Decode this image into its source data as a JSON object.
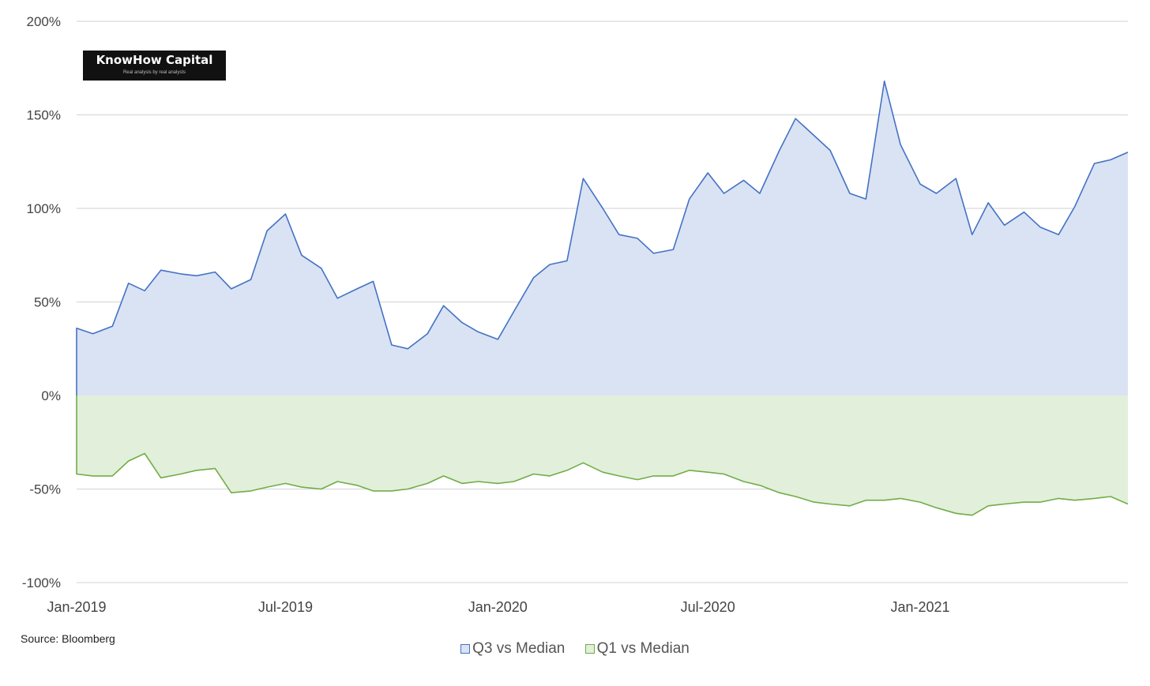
{
  "chart_data": {
    "type": "area",
    "title": "",
    "xlabel": "",
    "ylabel": "",
    "ylim": [
      -100,
      200
    ],
    "yticks": [
      "200%",
      "150%",
      "100%",
      "50%",
      "0%",
      "-50%",
      "-100%"
    ],
    "ytick_values": [
      200,
      150,
      100,
      50,
      0,
      -50,
      -100
    ],
    "xticks": [
      "Jan-2019",
      "Jul-2019",
      "Jan-2020",
      "Jul-2020",
      "Jan-2021"
    ],
    "xtick_dates": [
      "2019-01-01",
      "2019-07-01",
      "2020-01-01",
      "2020-07-01",
      "2021-01-01"
    ],
    "xlim": [
      "2019-01-01",
      "2021-06-30"
    ],
    "grid": "horizontal",
    "legend_position": "bottom",
    "x": [
      "2019-01-01",
      "2019-01-15",
      "2019-02-01",
      "2019-02-15",
      "2019-03-01",
      "2019-03-15",
      "2019-04-01",
      "2019-04-15",
      "2019-05-01",
      "2019-05-15",
      "2019-06-01",
      "2019-06-15",
      "2019-07-01",
      "2019-07-15",
      "2019-08-01",
      "2019-08-15",
      "2019-09-01",
      "2019-09-15",
      "2019-10-01",
      "2019-10-15",
      "2019-11-01",
      "2019-11-15",
      "2019-12-01",
      "2019-12-15",
      "2020-01-01",
      "2020-01-15",
      "2020-02-01",
      "2020-02-15",
      "2020-03-01",
      "2020-03-15",
      "2020-04-01",
      "2020-04-15",
      "2020-05-01",
      "2020-05-15",
      "2020-06-01",
      "2020-06-15",
      "2020-07-01",
      "2020-07-15",
      "2020-08-01",
      "2020-08-15",
      "2020-09-01",
      "2020-09-15",
      "2020-10-01",
      "2020-10-15",
      "2020-11-01",
      "2020-11-15",
      "2020-12-01",
      "2020-12-15",
      "2021-01-01",
      "2021-01-15",
      "2021-02-01",
      "2021-02-15",
      "2021-03-01",
      "2021-03-15",
      "2021-04-01",
      "2021-04-15",
      "2021-05-01",
      "2021-05-15",
      "2021-06-01",
      "2021-06-15",
      "2021-06-30"
    ],
    "series": [
      {
        "name": "Q3 vs Median",
        "color": "#4472c4",
        "fill": "#dae3f3",
        "values": [
          36,
          33,
          37,
          60,
          56,
          67,
          65,
          64,
          66,
          57,
          62,
          88,
          97,
          75,
          68,
          52,
          57,
          61,
          27,
          25,
          33,
          48,
          39,
          34,
          30,
          45,
          63,
          70,
          72,
          116,
          100,
          86,
          84,
          76,
          78,
          105,
          119,
          108,
          115,
          108,
          131,
          148,
          139,
          131,
          108,
          105,
          168,
          134,
          113,
          108,
          116,
          86,
          103,
          91,
          98,
          90,
          86,
          101,
          124,
          126,
          130
        ]
      },
      {
        "name": "Q1 vs Median",
        "color": "#70ad47",
        "fill": "#e2efda",
        "values": [
          -42,
          -43,
          -43,
          -35,
          -31,
          -44,
          -42,
          -40,
          -39,
          -52,
          -51,
          -49,
          -47,
          -49,
          -50,
          -46,
          -48,
          -51,
          -51,
          -50,
          -47,
          -43,
          -47,
          -46,
          -47,
          -46,
          -42,
          -43,
          -40,
          -36,
          -41,
          -43,
          -45,
          -43,
          -43,
          -40,
          -41,
          -42,
          -46,
          -48,
          -52,
          -54,
          -57,
          -58,
          -59,
          -56,
          -56,
          -55,
          -57,
          -60,
          -63,
          -64,
          -59,
          -58,
          -57,
          -57,
          -55,
          -56,
          -55,
          -54,
          -58
        ]
      }
    ]
  },
  "logo": {
    "name": "KnowHow Capital",
    "tagline": "Real analysis by real analysts"
  },
  "source": "Source: Bloomberg",
  "legend": [
    {
      "label": "Q3 vs Median",
      "border": "#4472c4",
      "fill": "#dae3f3"
    },
    {
      "label": "Q1 vs Median",
      "border": "#70ad47",
      "fill": "#e2efda"
    }
  ]
}
